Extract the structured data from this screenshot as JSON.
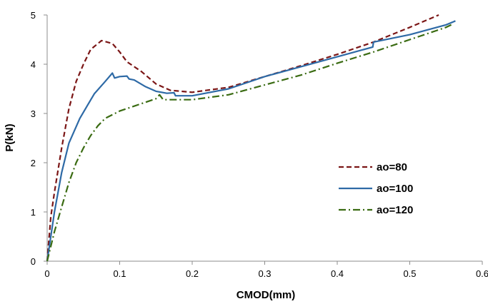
{
  "chart_data": {
    "type": "line",
    "xlabel": "CMOD(mm)",
    "ylabel": "P(kN)",
    "xlim": [
      0,
      0.6
    ],
    "ylim": [
      0,
      5
    ],
    "xticks": [
      "0",
      "0.1",
      "0.2",
      "0.3",
      "0.4",
      "0.5",
      "0.6"
    ],
    "yticks": [
      "0",
      "1",
      "2",
      "3",
      "4",
      "5"
    ],
    "grid": false,
    "legend_position": "right",
    "series": [
      {
        "name": "ao=80",
        "color": "#7b1616",
        "style": "dashed",
        "points": [
          [
            0,
            0
          ],
          [
            0.005,
            0.9
          ],
          [
            0.01,
            1.4
          ],
          [
            0.02,
            2.3
          ],
          [
            0.03,
            3.1
          ],
          [
            0.04,
            3.65
          ],
          [
            0.05,
            4.0
          ],
          [
            0.06,
            4.3
          ],
          [
            0.075,
            4.48
          ],
          [
            0.09,
            4.42
          ],
          [
            0.1,
            4.25
          ],
          [
            0.11,
            4.05
          ],
          [
            0.13,
            3.85
          ],
          [
            0.15,
            3.6
          ],
          [
            0.17,
            3.47
          ],
          [
            0.2,
            3.43
          ],
          [
            0.25,
            3.53
          ],
          [
            0.3,
            3.75
          ],
          [
            0.35,
            3.97
          ],
          [
            0.4,
            4.2
          ],
          [
            0.45,
            4.45
          ],
          [
            0.5,
            4.75
          ],
          [
            0.54,
            5.0
          ]
        ]
      },
      {
        "name": "ao=100",
        "color": "#2e6aa6",
        "style": "solid",
        "points": [
          [
            0,
            0
          ],
          [
            0.005,
            0.5
          ],
          [
            0.01,
            1.0
          ],
          [
            0.02,
            1.8
          ],
          [
            0.03,
            2.4
          ],
          [
            0.045,
            2.9
          ],
          [
            0.055,
            3.15
          ],
          [
            0.065,
            3.4
          ],
          [
            0.08,
            3.65
          ],
          [
            0.09,
            3.82
          ],
          [
            0.093,
            3.72
          ],
          [
            0.1,
            3.75
          ],
          [
            0.11,
            3.76
          ],
          [
            0.113,
            3.7
          ],
          [
            0.12,
            3.68
          ],
          [
            0.135,
            3.55
          ],
          [
            0.15,
            3.45
          ],
          [
            0.165,
            3.41
          ],
          [
            0.175,
            3.42
          ],
          [
            0.177,
            3.36
          ],
          [
            0.2,
            3.36
          ],
          [
            0.25,
            3.5
          ],
          [
            0.3,
            3.75
          ],
          [
            0.35,
            3.95
          ],
          [
            0.4,
            4.15
          ],
          [
            0.449,
            4.35
          ],
          [
            0.45,
            4.45
          ],
          [
            0.5,
            4.6
          ],
          [
            0.55,
            4.8
          ],
          [
            0.563,
            4.88
          ]
        ]
      },
      {
        "name": "ao=120",
        "color": "#3a6b12",
        "style": "dashdot",
        "points": [
          [
            0,
            0
          ],
          [
            0.01,
            0.6
          ],
          [
            0.02,
            1.1
          ],
          [
            0.03,
            1.6
          ],
          [
            0.04,
            2.0
          ],
          [
            0.05,
            2.3
          ],
          [
            0.06,
            2.55
          ],
          [
            0.07,
            2.75
          ],
          [
            0.08,
            2.9
          ],
          [
            0.1,
            3.05
          ],
          [
            0.12,
            3.15
          ],
          [
            0.15,
            3.3
          ],
          [
            0.155,
            3.38
          ],
          [
            0.16,
            3.28
          ],
          [
            0.2,
            3.28
          ],
          [
            0.25,
            3.38
          ],
          [
            0.3,
            3.58
          ],
          [
            0.35,
            3.78
          ],
          [
            0.4,
            4.02
          ],
          [
            0.45,
            4.25
          ],
          [
            0.5,
            4.5
          ],
          [
            0.55,
            4.75
          ],
          [
            0.56,
            4.82
          ]
        ]
      }
    ]
  }
}
